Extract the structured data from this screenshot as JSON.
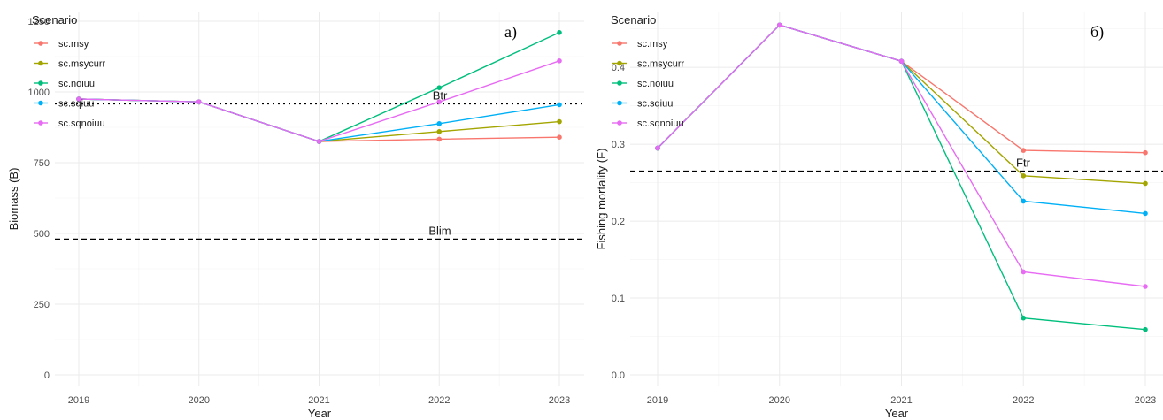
{
  "colors": {
    "sc.msy": "#F8766D",
    "sc.msycurr": "#A3A500",
    "sc.noiuu": "#00BF7D",
    "sc.sqiuu": "#00B0F6",
    "sc.sqnoiuu": "#E76BF3"
  },
  "chart_data": [
    {
      "type": "line",
      "panel_tag": "a)",
      "xlabel": "Year",
      "ylabel": "Biomass (B)",
      "x": [
        2019,
        2020,
        2021,
        2022,
        2023
      ],
      "x_ticks": [
        "2019",
        "2020",
        "2021",
        "2022",
        "2023"
      ],
      "y_ticks": [
        "0",
        "250",
        "500",
        "750",
        "1000",
        "1250"
      ],
      "ylim": [
        0,
        1250
      ],
      "grid": true,
      "legend_title": "Scenario",
      "legend_position": "top-left",
      "series": [
        {
          "name": "sc.msy",
          "values": [
            975,
            965,
            825,
            833,
            840
          ]
        },
        {
          "name": "sc.msycurr",
          "values": [
            975,
            965,
            825,
            860,
            895
          ]
        },
        {
          "name": "sc.noiuu",
          "values": [
            975,
            965,
            825,
            1015,
            1210
          ]
        },
        {
          "name": "sc.sqiuu",
          "values": [
            975,
            965,
            825,
            888,
            955
          ]
        },
        {
          "name": "sc.sqnoiuu",
          "values": [
            975,
            965,
            825,
            965,
            1110
          ]
        }
      ],
      "reference_lines": [
        {
          "label": "Btr",
          "y": 958,
          "style": "dotted"
        },
        {
          "label": "Blim",
          "y": 480,
          "style": "dashed"
        }
      ]
    },
    {
      "type": "line",
      "panel_tag": "б)",
      "xlabel": "Year",
      "ylabel": "Fishing mortality (F)",
      "x": [
        2019,
        2020,
        2021,
        2022,
        2023
      ],
      "x_ticks": [
        "2019",
        "2020",
        "2021",
        "2022",
        "2023"
      ],
      "y_ticks": [
        "0.0",
        "0.1",
        "0.2",
        "0.3",
        "0.4"
      ],
      "ylim": [
        0,
        0.46
      ],
      "grid": true,
      "legend_title": "Scenario",
      "legend_position": "top-left",
      "series": [
        {
          "name": "sc.msy",
          "values": [
            0.295,
            0.455,
            0.408,
            0.292,
            0.289
          ]
        },
        {
          "name": "sc.msycurr",
          "values": [
            0.295,
            0.455,
            0.408,
            0.259,
            0.249
          ]
        },
        {
          "name": "sc.noiuu",
          "values": [
            0.295,
            0.455,
            0.408,
            0.074,
            0.059
          ]
        },
        {
          "name": "sc.sqiuu",
          "values": [
            0.295,
            0.455,
            0.408,
            0.226,
            0.21
          ]
        },
        {
          "name": "sc.sqnoiuu",
          "values": [
            0.295,
            0.455,
            0.408,
            0.134,
            0.115
          ]
        }
      ],
      "reference_lines": [
        {
          "label": "Ftr",
          "y": 0.265,
          "style": "dashed"
        }
      ]
    }
  ]
}
